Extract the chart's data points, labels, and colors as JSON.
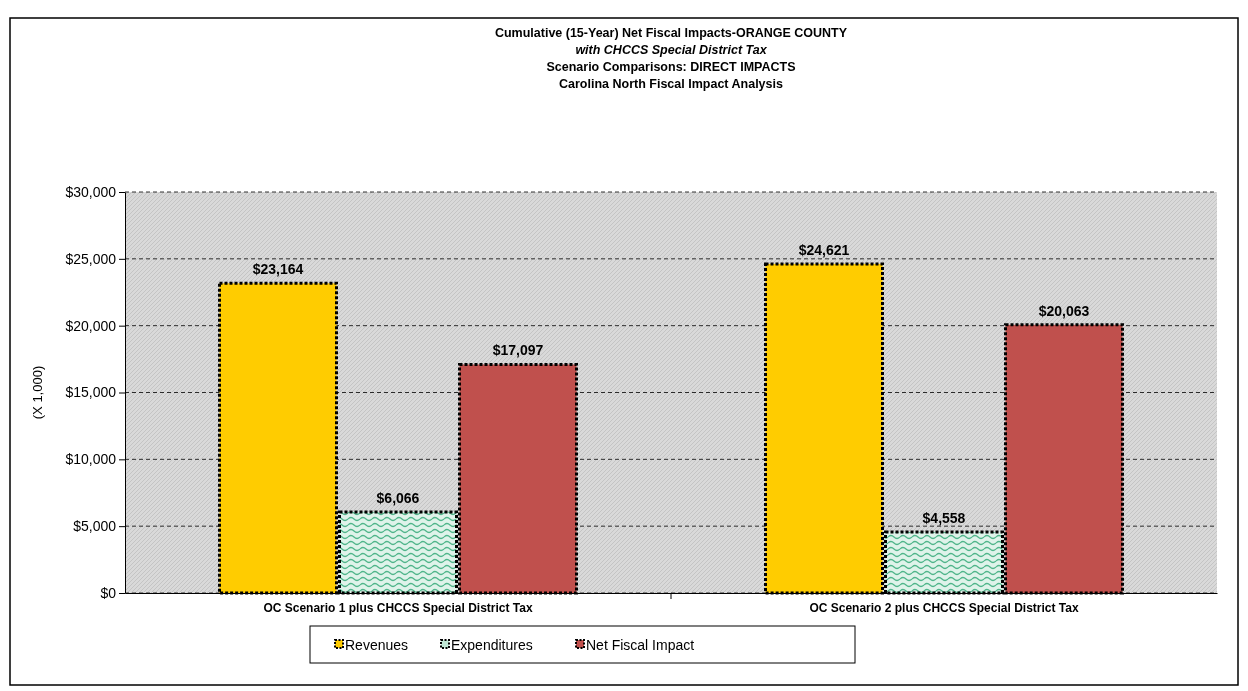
{
  "chart_data": {
    "type": "bar",
    "title": "Cumulative (15-Year) Net Fiscal Impacts-ORANGE COUNTY\nwith CHCCS Special District Tax\nScenario Comparisons: DIRECT IMPACTS\nCarolina North Fiscal Impact Analysis",
    "ylabel": "(X 1,000)",
    "categories": [
      "OC Scenario 1 plus CHCCS Special District Tax",
      "OC Scenario 2 plus CHCCS Special District Tax"
    ],
    "series": [
      {
        "name": "Revenues",
        "color": "#ffcc00",
        "values": [
          23164,
          24621
        ]
      },
      {
        "name": "Expenditures",
        "color": "#bfe6d4",
        "values": [
          6066,
          4558
        ]
      },
      {
        "name": "Net Fiscal Impact",
        "color": "#c0504d",
        "values": [
          17097,
          20063
        ]
      }
    ],
    "value_labels": [
      [
        "$23,164",
        "$24,621"
      ],
      [
        "$6,066",
        "$4,558"
      ],
      [
        "$17,097",
        "$20,063"
      ]
    ],
    "ylim": [
      0,
      30000
    ],
    "yticks": [
      {
        "value": 0,
        "label": "$0"
      },
      {
        "value": 5000,
        "label": "$5,000"
      },
      {
        "value": 10000,
        "label": "$10,000"
      },
      {
        "value": 15000,
        "label": "$15,000"
      },
      {
        "value": 20000,
        "label": "$20,000"
      },
      {
        "value": 25000,
        "label": "$25,000"
      },
      {
        "value": 30000,
        "label": "$30,000"
      }
    ],
    "grid": "y",
    "legend": "bottom"
  }
}
